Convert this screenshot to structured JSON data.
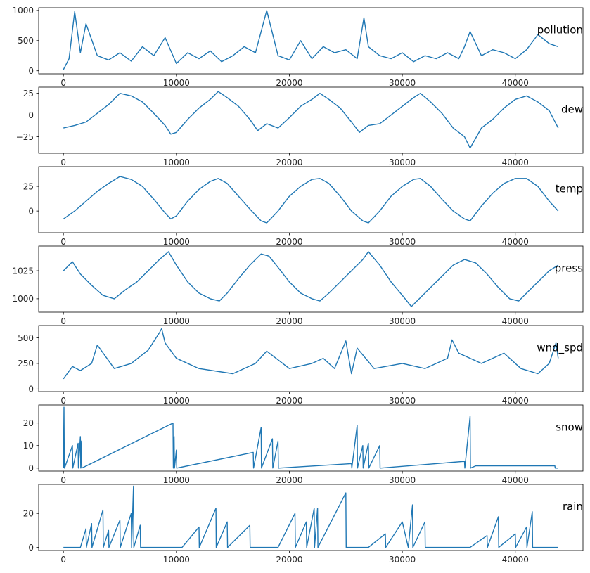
{
  "chart_data": [
    {
      "type": "line",
      "title": "pollution",
      "xlim": [
        -2190,
        45990
      ],
      "ylim": [
        -50,
        1045
      ],
      "xticks": [
        0,
        10000,
        20000,
        30000,
        40000
      ],
      "xtick_labels": [
        "0",
        "10000",
        "20000",
        "30000",
        "40000"
      ],
      "yticks": [
        0,
        500,
        1000
      ],
      "ytick_labels": [
        "0",
        "500",
        "1000"
      ],
      "x": [
        0,
        500,
        1000,
        1500,
        2000,
        3000,
        4000,
        5000,
        6000,
        7000,
        8000,
        9000,
        10000,
        11000,
        12000,
        13000,
        14000,
        15000,
        16000,
        17000,
        18000,
        19000,
        20000,
        21000,
        22000,
        23000,
        24000,
        25000,
        26000,
        26600,
        27000,
        28000,
        29000,
        30000,
        31000,
        32000,
        33000,
        34000,
        35000,
        35500,
        36000,
        37000,
        38000,
        39000,
        40000,
        41000,
        42000,
        43000,
        43800
      ],
      "y": [
        20,
        200,
        980,
        300,
        780,
        250,
        180,
        300,
        160,
        400,
        250,
        550,
        120,
        300,
        200,
        330,
        150,
        250,
        400,
        300,
        1000,
        250,
        180,
        500,
        200,
        400,
        300,
        350,
        200,
        880,
        400,
        250,
        200,
        300,
        150,
        250,
        200,
        300,
        200,
        400,
        650,
        250,
        350,
        300,
        200,
        350,
        600,
        450,
        400
      ]
    },
    {
      "type": "line",
      "title": "dew",
      "xlim": [
        -2190,
        45990
      ],
      "ylim": [
        -44,
        32
      ],
      "xticks": [
        0,
        10000,
        20000,
        30000,
        40000
      ],
      "xtick_labels": [
        "0",
        "10000",
        "20000",
        "30000",
        "40000"
      ],
      "yticks": [
        -25,
        0,
        25
      ],
      "ytick_labels": [
        "−25",
        "0",
        "25"
      ],
      "x": [
        0,
        1000,
        2000,
        3000,
        4000,
        5000,
        6000,
        7000,
        8000,
        9000,
        9500,
        10000,
        11000,
        12000,
        13000,
        13700,
        14500,
        15500,
        16500,
        17200,
        18000,
        19000,
        20000,
        21000,
        22000,
        22700,
        23500,
        24500,
        25500,
        26200,
        27000,
        28000,
        29000,
        30000,
        31000,
        31600,
        32500,
        33500,
        34500,
        35500,
        36000,
        37000,
        38000,
        39000,
        40000,
        41000,
        42000,
        43000,
        43800
      ],
      "y": [
        -15,
        -12,
        -8,
        2,
        12,
        25,
        22,
        15,
        2,
        -12,
        -22,
        -20,
        -5,
        8,
        18,
        27,
        20,
        10,
        -5,
        -18,
        -10,
        -15,
        -3,
        10,
        18,
        25,
        18,
        8,
        -8,
        -20,
        -12,
        -10,
        0,
        10,
        20,
        25,
        15,
        2,
        -15,
        -25,
        -38,
        -15,
        -5,
        8,
        18,
        22,
        15,
        5,
        -15
      ]
    },
    {
      "type": "line",
      "title": "temp",
      "xlim": [
        -2190,
        45990
      ],
      "ylim": [
        -22,
        45
      ],
      "xticks": [
        0,
        10000,
        20000,
        30000,
        40000
      ],
      "xtick_labels": [
        "0",
        "10000",
        "20000",
        "30000",
        "40000"
      ],
      "yticks": [
        0,
        25
      ],
      "ytick_labels": [
        "0",
        "25"
      ],
      "x": [
        0,
        1000,
        2000,
        3000,
        4000,
        5000,
        6000,
        7000,
        8000,
        9000,
        9500,
        10000,
        11000,
        12000,
        13000,
        13700,
        14500,
        15500,
        16500,
        17500,
        18000,
        19000,
        20000,
        21000,
        22000,
        22700,
        23500,
        24500,
        25500,
        26500,
        27000,
        28000,
        29000,
        30000,
        31000,
        31600,
        32500,
        33500,
        34500,
        35500,
        36000,
        37000,
        38000,
        39000,
        40000,
        41000,
        42000,
        43000,
        43800
      ],
      "y": [
        -8,
        0,
        10,
        20,
        28,
        35,
        32,
        25,
        12,
        -2,
        -8,
        -5,
        10,
        22,
        30,
        33,
        28,
        15,
        2,
        -10,
        -12,
        0,
        15,
        25,
        32,
        33,
        28,
        15,
        0,
        -10,
        -12,
        0,
        15,
        25,
        32,
        33,
        25,
        12,
        0,
        -8,
        -10,
        5,
        18,
        28,
        33,
        33,
        25,
        10,
        0
      ]
    },
    {
      "type": "line",
      "title": "press",
      "xlim": [
        -2190,
        45990
      ],
      "ylim": [
        988,
        1047
      ],
      "xticks": [
        0,
        10000,
        20000,
        30000,
        40000
      ],
      "xtick_labels": [
        "0",
        "10000",
        "20000",
        "30000",
        "40000"
      ],
      "yticks": [
        1000,
        1025
      ],
      "ytick_labels": [
        "1000",
        "1025"
      ],
      "x": [
        0,
        800,
        1500,
        2500,
        3500,
        4500,
        5500,
        6500,
        7500,
        8500,
        9300,
        10000,
        11000,
        12000,
        13000,
        13800,
        14500,
        15500,
        16500,
        17500,
        18200,
        19000,
        20000,
        21000,
        22000,
        22700,
        23500,
        24500,
        25500,
        26500,
        27000,
        28000,
        29000,
        30000,
        30800,
        31500,
        32500,
        33500,
        34500,
        35500,
        36500,
        37500,
        38500,
        39500,
        40300,
        41000,
        42000,
        43000,
        43800
      ],
      "y": [
        1025,
        1033,
        1022,
        1012,
        1003,
        1000,
        1008,
        1015,
        1025,
        1035,
        1042,
        1030,
        1015,
        1005,
        1000,
        998,
        1005,
        1018,
        1030,
        1040,
        1038,
        1028,
        1015,
        1005,
        1000,
        998,
        1005,
        1015,
        1025,
        1035,
        1042,
        1030,
        1015,
        1003,
        993,
        1000,
        1010,
        1020,
        1030,
        1035,
        1032,
        1022,
        1010,
        1000,
        998,
        1005,
        1015,
        1025,
        1030
      ]
    },
    {
      "type": "line",
      "title": "wnd_spd",
      "xlim": [
        -2190,
        45990
      ],
      "ylim": [
        -25,
        620
      ],
      "xticks": [
        0,
        10000,
        20000,
        30000,
        40000
      ],
      "xtick_labels": [
        "0",
        "10000",
        "20000",
        "30000",
        "40000"
      ],
      "yticks": [
        0,
        250,
        500
      ],
      "ytick_labels": [
        "0",
        "250",
        "500"
      ],
      "x": [
        0,
        800,
        1500,
        2500,
        3000,
        4500,
        6000,
        7500,
        8500,
        8700,
        9000,
        10000,
        12000,
        15000,
        17000,
        18000,
        20000,
        22000,
        23000,
        24000,
        25000,
        25500,
        26000,
        27500,
        30000,
        32000,
        34000,
        34400,
        35000,
        37000,
        39000,
        40500,
        42000,
        43000,
        43600,
        43800
      ],
      "y": [
        100,
        220,
        180,
        250,
        430,
        200,
        250,
        380,
        550,
        590,
        450,
        300,
        200,
        150,
        250,
        370,
        200,
        250,
        300,
        200,
        470,
        150,
        400,
        200,
        250,
        200,
        300,
        480,
        350,
        250,
        350,
        200,
        150,
        250,
        450,
        300
      ]
    },
    {
      "type": "line",
      "title": "snow",
      "xlim": [
        -2190,
        45990
      ],
      "ylim": [
        -1.3,
        28
      ],
      "xticks": [
        0,
        10000,
        20000,
        30000,
        40000
      ],
      "xtick_labels": [
        "0",
        "10000",
        "20000",
        "30000",
        "40000"
      ],
      "yticks": [
        0,
        10,
        20
      ],
      "ytick_labels": [
        "0",
        "10",
        "20"
      ],
      "x": [
        0,
        50,
        80,
        100,
        800,
        830,
        1300,
        1330,
        1500,
        1530,
        1600,
        1630,
        9700,
        9730,
        9800,
        9830,
        10000,
        10030,
        16800,
        16830,
        17500,
        17530,
        18500,
        18530,
        19000,
        19030,
        25500,
        25530,
        26000,
        26030,
        26500,
        26530,
        27000,
        27030,
        28000,
        28030,
        35500,
        35530,
        36000,
        36030,
        36500,
        43500,
        43530,
        43800
      ],
      "y": [
        0,
        27,
        0,
        0,
        10,
        0,
        11,
        0,
        14,
        0,
        12,
        0,
        20,
        0,
        14,
        0,
        8,
        0,
        7,
        0,
        18,
        0,
        13,
        0,
        12,
        0,
        2,
        0,
        19,
        0,
        10,
        0,
        11,
        0,
        10,
        0,
        3,
        0,
        23,
        0,
        1,
        1,
        0,
        0
      ]
    },
    {
      "type": "line",
      "title": "rain",
      "xlim": [
        -2190,
        45990
      ],
      "ylim": [
        -1.8,
        37
      ],
      "xticks": [
        0,
        10000,
        20000,
        30000,
        40000
      ],
      "xtick_labels": [
        "0",
        "10000",
        "20000",
        "30000",
        "40000"
      ],
      "yticks": [
        0,
        20
      ],
      "ytick_labels": [
        "0",
        "20"
      ],
      "x": [
        0,
        1500,
        2000,
        2030,
        2500,
        2530,
        3500,
        3530,
        4000,
        4030,
        5000,
        5030,
        6000,
        6030,
        6200,
        6230,
        6800,
        6830,
        7000,
        10500,
        12000,
        12030,
        13500,
        13530,
        14500,
        14530,
        16500,
        16530,
        19000,
        20500,
        20530,
        21500,
        21530,
        22200,
        22230,
        22500,
        22530,
        25000,
        25030,
        26000,
        27000,
        28500,
        28530,
        30000,
        30530,
        30900,
        30930,
        32000,
        32030,
        34000,
        36000,
        37500,
        37530,
        38500,
        38530,
        40000,
        40030,
        41000,
        41030,
        41500,
        41530,
        42000,
        43800
      ],
      "y": [
        0,
        0,
        11,
        0,
        14,
        0,
        22,
        0,
        10,
        0,
        16,
        0,
        20,
        0,
        36,
        0,
        13,
        0,
        0,
        0,
        12,
        0,
        23,
        0,
        15,
        0,
        13,
        0,
        0,
        20,
        0,
        15,
        0,
        23,
        0,
        23,
        0,
        32,
        0,
        0,
        0,
        8,
        0,
        15,
        0,
        25,
        0,
        15,
        0,
        0,
        0,
        7,
        0,
        18,
        0,
        8,
        0,
        12,
        0,
        21,
        0,
        0,
        0
      ]
    }
  ]
}
